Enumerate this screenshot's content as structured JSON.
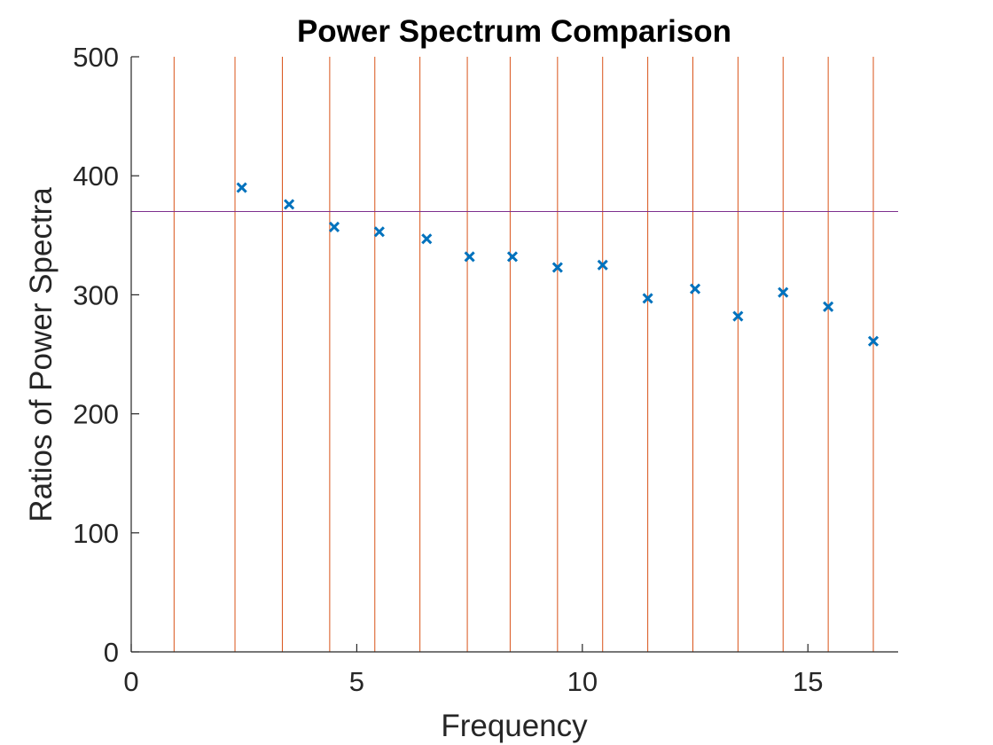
{
  "chart_data": {
    "type": "scatter",
    "title": "Power Spectrum Comparison",
    "xlabel": "Frequency",
    "ylabel": "Ratios of Power Spectra",
    "xlim": [
      0,
      17
    ],
    "ylim": [
      0,
      500
    ],
    "xticks": [
      0,
      5,
      10,
      15
    ],
    "yticks": [
      0,
      100,
      200,
      300,
      400,
      500
    ],
    "grid": false,
    "series": [
      {
        "marker": "x",
        "color": "#0072BD",
        "points": [
          {
            "x": 2.45,
            "y": 390
          },
          {
            "x": 3.5,
            "y": 376
          },
          {
            "x": 4.5,
            "y": 357
          },
          {
            "x": 5.5,
            "y": 353
          },
          {
            "x": 6.55,
            "y": 347
          },
          {
            "x": 7.5,
            "y": 332
          },
          {
            "x": 8.45,
            "y": 332
          },
          {
            "x": 9.45,
            "y": 323
          },
          {
            "x": 10.45,
            "y": 325
          },
          {
            "x": 11.45,
            "y": 297
          },
          {
            "x": 12.5,
            "y": 305
          },
          {
            "x": 13.45,
            "y": 282
          },
          {
            "x": 14.45,
            "y": 302
          },
          {
            "x": 15.45,
            "y": 290
          },
          {
            "x": 16.45,
            "y": 261
          }
        ]
      }
    ],
    "vertical_lines": {
      "color": "#D95319",
      "x": [
        0.95,
        2.3,
        3.35,
        4.4,
        5.4,
        6.4,
        7.45,
        8.4,
        9.45,
        10.45,
        11.45,
        12.45,
        13.45,
        14.45,
        15.45,
        16.45
      ]
    },
    "horizontal_line": {
      "color": "#7E2F8E",
      "y": 370
    }
  }
}
